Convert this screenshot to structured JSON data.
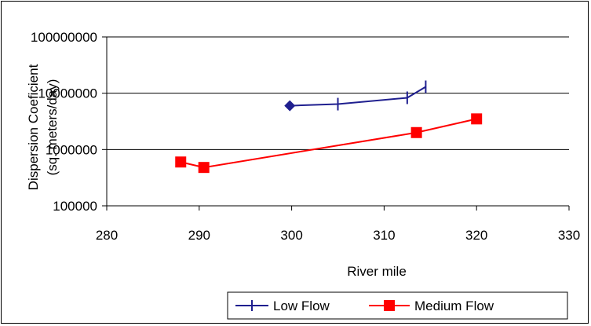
{
  "chart_data": {
    "type": "line",
    "title": "",
    "xlabel": "River mile",
    "ylabel_line1": "Dispersion Coeficient",
    "ylabel_line2": "(sq. meters/day)",
    "xlim": [
      280,
      330
    ],
    "ylim": [
      100000,
      100000000
    ],
    "yscale": "log",
    "x_ticks": [
      280,
      290,
      300,
      310,
      320,
      330
    ],
    "y_ticks": [
      100000,
      1000000,
      10000000,
      100000000
    ],
    "y_tick_labels": [
      "100000",
      "1000000",
      "10000000",
      "100000000"
    ],
    "grid": "horizontal major gridlines",
    "legend_position": "bottom",
    "series": [
      {
        "name": "Low Flow",
        "color": "#1f1f8f",
        "marker": "plus",
        "first_marker": "diamond",
        "points": [
          {
            "x": 299.8,
            "y": 6000000
          },
          {
            "x": 305.0,
            "y": 6400000
          },
          {
            "x": 312.5,
            "y": 8300000
          },
          {
            "x": 314.5,
            "y": 13000000
          }
        ]
      },
      {
        "name": "Medium Flow",
        "color": "#ff0000",
        "marker": "square",
        "points": [
          {
            "x": 288.0,
            "y": 600000
          },
          {
            "x": 290.5,
            "y": 480000
          },
          {
            "x": 313.5,
            "y": 2000000
          },
          {
            "x": 320.0,
            "y": 3500000
          }
        ]
      }
    ]
  }
}
